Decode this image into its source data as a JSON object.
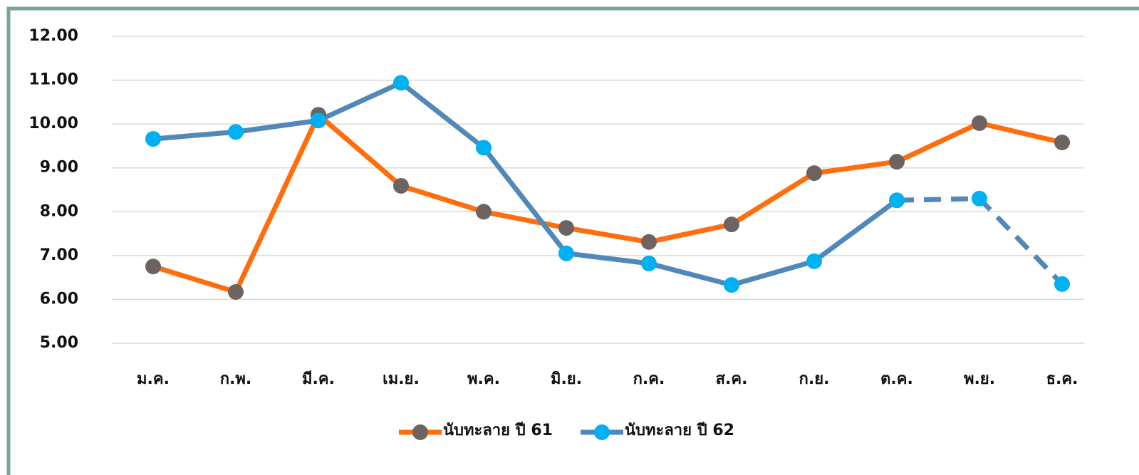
{
  "chart_data": {
    "type": "line",
    "categories": [
      "ม.ค.",
      "ก.พ.",
      "มี.ค.",
      "เม.ย.",
      "พ.ค.",
      "มิ.ย.",
      "ก.ค.",
      "ส.ค.",
      "ก.ย.",
      "ต.ค.",
      "พ.ย.",
      "ธ.ค."
    ],
    "series": [
      {
        "name": "นับทะลาย ปี 61",
        "color": "#ff6d0c",
        "marker_color": "#6f6361",
        "values": [
          6.75,
          6.17,
          10.21,
          8.59,
          8.0,
          7.63,
          7.31,
          7.71,
          8.88,
          9.14,
          10.02,
          9.58
        ]
      },
      {
        "name": "นับทะลาย ปี 62",
        "color": "#5288b8",
        "marker_color": "#00b0f0",
        "dash_from_index": 9,
        "values": [
          9.66,
          9.82,
          10.08,
          10.94,
          9.46,
          7.05,
          6.82,
          6.33,
          6.87,
          8.26,
          8.3,
          6.35
        ]
      }
    ],
    "ylim": [
      5,
      12
    ],
    "yticks": [
      {
        "value": 5,
        "label": "5.00"
      },
      {
        "value": 6,
        "label": "6.00"
      },
      {
        "value": 7,
        "label": "7.00"
      },
      {
        "value": 8,
        "label": "8.00"
      },
      {
        "value": 9,
        "label": "9.00"
      },
      {
        "value": 10,
        "label": "10.00"
      },
      {
        "value": 11,
        "label": "11.00"
      },
      {
        "value": 12,
        "label": "12.00"
      }
    ],
    "grid": true,
    "legend": "bottom"
  }
}
